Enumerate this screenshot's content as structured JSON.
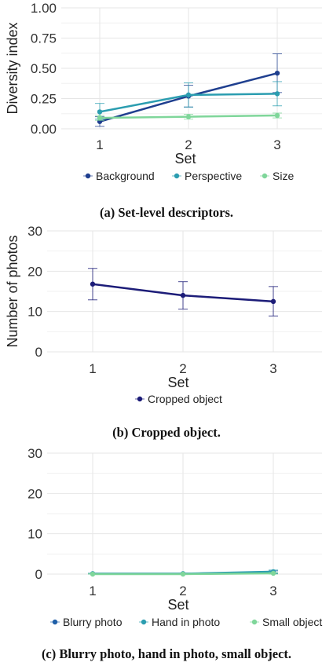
{
  "chart_data": [
    {
      "type": "line",
      "caption": "(a) Set-level descriptors.",
      "xlabel": "Set",
      "ylabel": "Diversity index",
      "x": [
        1,
        2,
        3
      ],
      "xticks": [
        "1",
        "2",
        "3"
      ],
      "yticks": [
        "0.00",
        "0.25",
        "0.50",
        "0.75",
        "1.00"
      ],
      "ylim": [
        0,
        1
      ],
      "grid": true,
      "legend_position": "bottom",
      "series": [
        {
          "name": "Background",
          "color": "#1f3f8f",
          "values": [
            0.06,
            0.27,
            0.46
          ],
          "err_low": [
            0.02,
            0.18,
            0.3
          ],
          "err_high": [
            0.1,
            0.36,
            0.62
          ]
        },
        {
          "name": "Perspective",
          "color": "#2b9db0",
          "values": [
            0.14,
            0.28,
            0.29
          ],
          "err_low": [
            0.08,
            0.18,
            0.19
          ],
          "err_high": [
            0.21,
            0.38,
            0.39
          ]
        },
        {
          "name": "Size",
          "color": "#7fd69a",
          "values": [
            0.09,
            0.1,
            0.11
          ],
          "err_low": [
            0.07,
            0.08,
            0.09
          ],
          "err_high": [
            0.11,
            0.12,
            0.13
          ]
        }
      ]
    },
    {
      "type": "line",
      "caption": "(b) Cropped object.",
      "xlabel": "Set",
      "ylabel": "Number of photos",
      "x": [
        1,
        2,
        3
      ],
      "xticks": [
        "1",
        "2",
        "3"
      ],
      "yticks": [
        "0",
        "10",
        "20",
        "30"
      ],
      "ylim": [
        0,
        30
      ],
      "grid": true,
      "legend_position": "bottom",
      "series": [
        {
          "name": "Cropped object",
          "color": "#1c1c78",
          "values": [
            16.8,
            14.0,
            12.5
          ],
          "err_low": [
            12.9,
            10.6,
            8.9
          ],
          "err_high": [
            20.7,
            17.4,
            16.2
          ]
        }
      ]
    },
    {
      "type": "line",
      "caption": "(c) Blurry photo, hand in photo, small object.",
      "xlabel": "Set",
      "ylabel": "",
      "x": [
        1,
        2,
        3
      ],
      "xticks": [
        "1",
        "2",
        "3"
      ],
      "yticks": [
        "0",
        "10",
        "20",
        "30"
      ],
      "ylim": [
        0,
        30
      ],
      "grid": true,
      "legend_position": "bottom",
      "series": [
        {
          "name": "Blurry photo",
          "color": "#1f5fa8",
          "values": [
            0.1,
            0.1,
            0.4
          ],
          "err_low": [
            0.0,
            0.0,
            0.1
          ],
          "err_high": [
            0.2,
            0.2,
            0.8
          ]
        },
        {
          "name": "Hand in photo",
          "color": "#2b9db0",
          "values": [
            0.1,
            0.1,
            0.6
          ],
          "err_low": [
            0.0,
            0.0,
            0.2
          ],
          "err_high": [
            0.2,
            0.2,
            1.0
          ]
        },
        {
          "name": "Small object",
          "color": "#7fd69a",
          "values": [
            0.0,
            0.0,
            0.2
          ],
          "err_low": [
            0.0,
            0.0,
            0.0
          ],
          "err_high": [
            0.1,
            0.1,
            0.4
          ]
        }
      ]
    }
  ]
}
